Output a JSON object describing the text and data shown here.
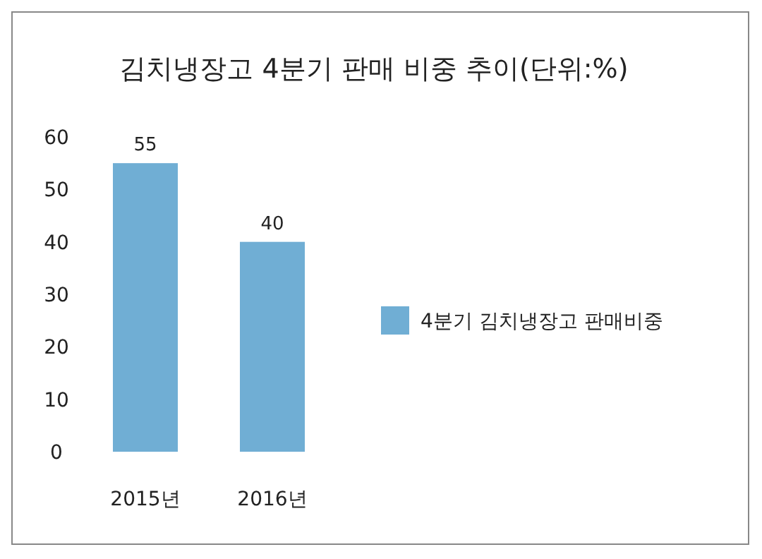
{
  "chart_data": {
    "type": "bar",
    "title": "김치냉장고 4분기 판매 비중 추이(단위:%)",
    "categories": [
      "2015년",
      "2016년"
    ],
    "series": [
      {
        "name": "4분기 김치냉장고 판매비중",
        "color": "#70aed4",
        "values": [
          55,
          40
        ]
      }
    ],
    "ylim": [
      0,
      60
    ],
    "yticks": [
      0,
      10,
      20,
      30,
      40,
      50,
      60
    ],
    "data_labels": true,
    "legend": "right",
    "grid": false
  }
}
